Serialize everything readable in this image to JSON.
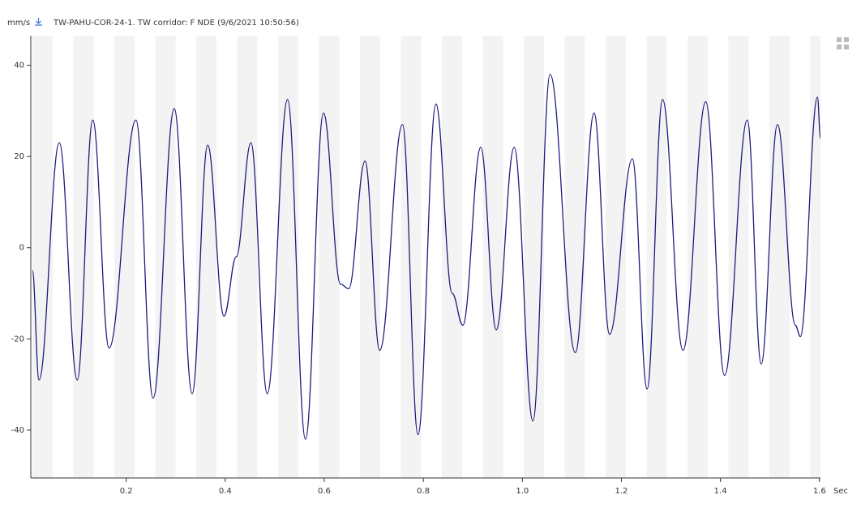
{
  "chart_data": {
    "type": "line",
    "title": "TW-PAHU-COR-24-1.  TW corridor: F NDE (9/6/2021 10:50:56)",
    "y_label": "mm/s",
    "x_label": "Sec",
    "xlim": [
      0.0074,
      1.602
    ],
    "ylim": [
      -50.5,
      46.5
    ],
    "xticks": [
      0.2,
      0.4,
      0.6,
      0.8,
      {
        "value": 1,
        "label": "1.0"
      },
      1.2,
      1.4,
      1.6
    ],
    "yticks": [
      -40,
      -20,
      0,
      20,
      40
    ],
    "x": [
      0.0107,
      0.0239,
      0.065,
      0.1012,
      0.1325,
      0.1654,
      0.2198,
      0.2543,
      0.2971,
      0.3333,
      0.3646,
      0.3975,
      0.4222,
      0.4519,
      0.4848,
      0.5259,
      0.5621,
      0.5984,
      0.6329,
      0.6494,
      0.6823,
      0.7119,
      0.758,
      0.7893,
      0.8255,
      0.8584,
      0.8798,
      0.916,
      0.9473,
      0.9835,
      1.0214,
      1.056,
      1.107,
      1.1449,
      1.1761,
      1.2222,
      1.2519,
      1.2831,
      1.3243,
      1.3704,
      1.4083,
      1.4543,
      1.4823,
      1.5152,
      1.5514,
      1.5613,
      1.596,
      1.602
    ],
    "series": [
      {
        "name": "mm/s",
        "color": "#1c1c7c",
        "values": [
          -5,
          -29,
          23,
          -29,
          28,
          -22,
          28,
          -33,
          30.5,
          -32,
          22.5,
          -15,
          -2,
          23,
          -32,
          32.5,
          -42,
          29.5,
          -8,
          -9,
          19,
          -22.5,
          27,
          -41,
          31.5,
          -10,
          -17,
          22,
          -18,
          22,
          -38,
          38,
          -23,
          29.5,
          -19,
          19.5,
          -31,
          32.5,
          -22.5,
          32,
          -28,
          28,
          -25.5,
          27,
          -17,
          -19.5,
          33,
          24
        ]
      }
    ]
  }
}
